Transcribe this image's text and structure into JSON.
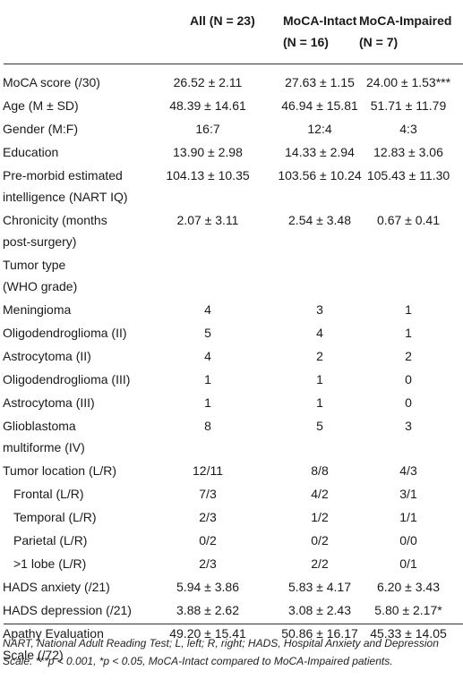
{
  "header": {
    "all": "All (N = 23)",
    "intact_1": "MoCA-Intact",
    "intact_2": "(N = 16)",
    "impaired_1": "MoCA-Impaired",
    "impaired_2": "(N = 7)"
  },
  "rows": [
    {
      "label": [
        "MoCA score (/30)"
      ],
      "all": "26.52 ± 2.11",
      "intact": "27.63 ± 1.15",
      "impaired": "24.00 ± 1.53***"
    },
    {
      "label": [
        "Age (M ± SD)"
      ],
      "all": "48.39 ± 14.61",
      "intact": "46.94 ± 15.81",
      "impaired": "51.71 ± 11.79"
    },
    {
      "label": [
        "Gender (M:F)"
      ],
      "all": "16:7",
      "intact": "12:4",
      "impaired": "4:3"
    },
    {
      "label": [
        "Education"
      ],
      "all": "13.90 ± 2.98",
      "intact": "14.33 ± 2.94",
      "impaired": "12.83 ± 3.06"
    },
    {
      "label": [
        "Pre-morbid estimated",
        "intelligence (NART IQ)"
      ],
      "all": "104.13 ± 10.35",
      "intact": "103.56 ± 10.24",
      "impaired": "105.43 ± 11.30"
    },
    {
      "label": [
        "Chronicity (months",
        "post-surgery)"
      ],
      "all": "2.07 ± 3.11",
      "intact": "2.54 ± 3.48",
      "impaired": "0.67 ± 0.41"
    },
    {
      "label": [
        "Tumor type",
        "(WHO grade)"
      ],
      "all": "",
      "intact": "",
      "impaired": ""
    },
    {
      "label": [
        "Meningioma"
      ],
      "all": "4",
      "intact": "3",
      "impaired": "1"
    },
    {
      "label": [
        "Oligodendroglioma (II)"
      ],
      "all": "5",
      "intact": "4",
      "impaired": "1"
    },
    {
      "label": [
        "Astrocytoma (II)"
      ],
      "all": "4",
      "intact": "2",
      "impaired": "2"
    },
    {
      "label": [
        "Oligodendroglioma (III)"
      ],
      "all": "1",
      "intact": "1",
      "impaired": "0"
    },
    {
      "label": [
        "Astrocytoma (III)"
      ],
      "all": "1",
      "intact": "1",
      "impaired": "0"
    },
    {
      "label": [
        "Glioblastoma",
        "multiforme (IV)"
      ],
      "all": "8",
      "intact": "5",
      "impaired": "3"
    },
    {
      "label": [
        "Tumor location (L/R)"
      ],
      "all": "12/11",
      "intact": "8/8",
      "impaired": "4/3"
    },
    {
      "label": [
        "Frontal (L/R)"
      ],
      "all": "7/3",
      "intact": "4/2",
      "impaired": "3/1",
      "indent": true
    },
    {
      "label": [
        "Temporal (L/R)"
      ],
      "all": "2/3",
      "intact": "1/2",
      "impaired": "1/1",
      "indent": true
    },
    {
      "label": [
        "Parietal (L/R)"
      ],
      "all": "0/2",
      "intact": "0/2",
      "impaired": "0/0",
      "indent": true
    },
    {
      "label": [
        ">1 lobe (L/R)"
      ],
      "all": "2/3",
      "intact": "2/2",
      "impaired": "0/1",
      "indent": true
    },
    {
      "label": [
        "HADS anxiety (/21)"
      ],
      "all": "5.94 ± 3.86",
      "intact": "5.83 ± 4.17",
      "impaired": "6.20 ± 3.43"
    },
    {
      "label": [
        "HADS depression (/21)"
      ],
      "all": "3.88 ± 2.62",
      "intact": "3.08 ± 2.43",
      "impaired": "5.80 ± 2.17*"
    },
    {
      "label": [
        "Apathy Evaluation",
        "Scale (/72)"
      ],
      "all": "49.20 ± 15.41",
      "intact": "50.86 ± 16.17",
      "impaired": "45.33 ± 14.05"
    }
  ],
  "footnote": "NART, National Adult Reading Test; L, left; R, right; HADS, Hospital Anxiety and Depression Scale. ***p < 0.001, *p < 0.05, MoCA-Intact compared to MoCA-Impaired patients."
}
